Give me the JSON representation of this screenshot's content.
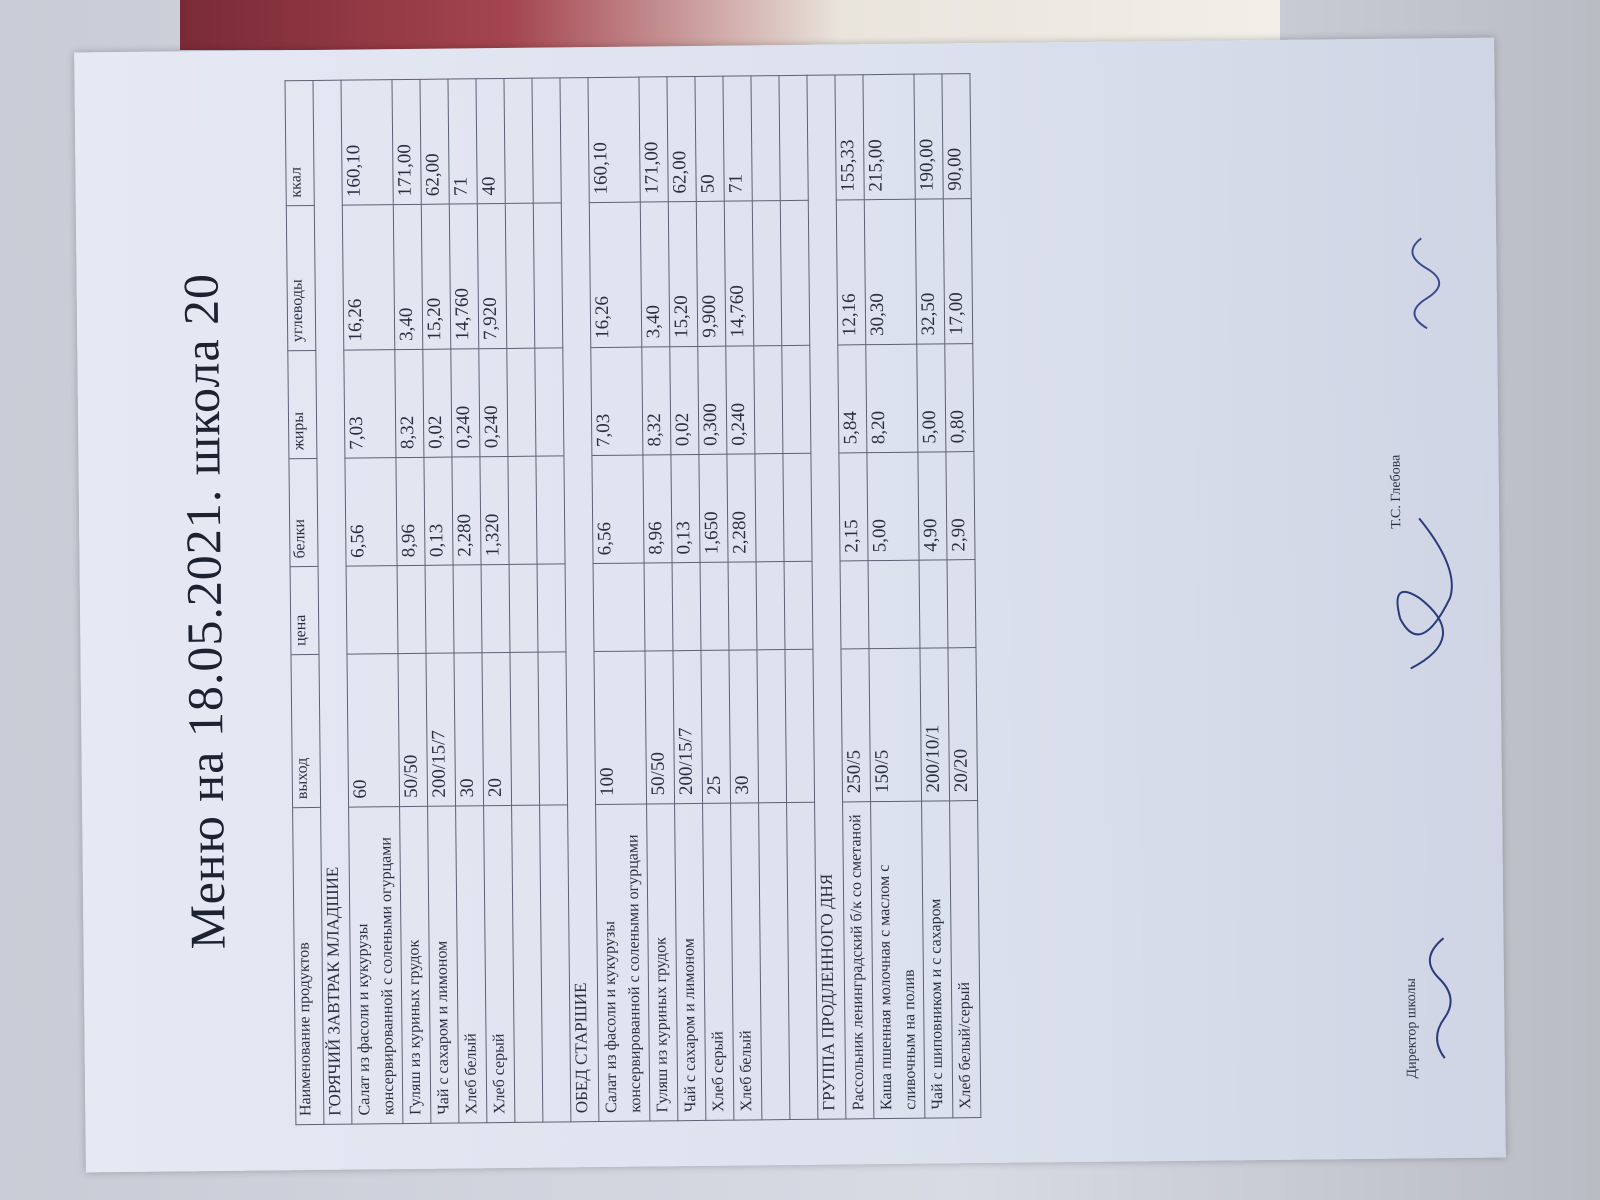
{
  "title": "Меню на 18.05.2021.  школа 20",
  "headers": [
    "Наименование продуктов",
    "выход",
    "цена",
    "белки",
    "жиры",
    "углеводы",
    "ккал"
  ],
  "sections": [
    {
      "title": "ГОРЯЧИЙ ЗАВТРАК МЛАДШИЕ",
      "rows": [
        [
          "Салат из фасоли и кукурузы консервированной с солеными огурцами",
          "60",
          "",
          "6,56",
          "7,03",
          "16,26",
          "160,10"
        ],
        [
          "Гуляш из куриных грудок",
          "50/50",
          "",
          "8,96",
          "8,32",
          "3,40",
          "171,00"
        ],
        [
          "Чай с сахаром и лимоном",
          "200/15/7",
          "",
          "0,13",
          "0,02",
          "15,20",
          "62,00"
        ],
        [
          "Хлеб белый",
          "30",
          "",
          "2,280",
          "0,240",
          "14,760",
          "71"
        ],
        [
          "Хлеб серый",
          "20",
          "",
          "1,320",
          "0,240",
          "7,920",
          "40"
        ],
        [
          "",
          "",
          "",
          "",
          "",
          "",
          ""
        ],
        [
          "",
          "",
          "",
          "",
          "",
          "",
          ""
        ]
      ]
    },
    {
      "title": "ОБЕД СТАРШИЕ",
      "rows": [
        [
          "Салат из фасоли и кукурузы консервированной с солеными огурцами",
          "100",
          "",
          "6,56",
          "7,03",
          "16,26",
          "160,10"
        ],
        [
          "Гуляш из куриных грудок",
          "50/50",
          "",
          "8,96",
          "8,32",
          "3,40",
          "171,00"
        ],
        [
          "Чай с сахаром и лимоном",
          "200/15/7",
          "",
          "0,13",
          "0,02",
          "15,20",
          "62,00"
        ],
        [
          "Хлеб серый",
          "25",
          "",
          "1,650",
          "0,300",
          "9,900",
          "50"
        ],
        [
          "Хлеб белый",
          "30",
          "",
          "2,280",
          "0,240",
          "14,760",
          "71"
        ],
        [
          "",
          "",
          "",
          "",
          "",
          "",
          ""
        ],
        [
          "",
          "",
          "",
          "",
          "",
          "",
          ""
        ]
      ]
    },
    {
      "title": "ГРУППА ПРОДЛЕННОГО ДНЯ",
      "rows": [
        [
          "Рассольник ленинградский б/к со сметаной",
          "250/5",
          "",
          "2,15",
          "5,84",
          "12,16",
          "155,33"
        ],
        [
          "Каша пшенная молочная с маслом с сливочным на полив",
          "150/5",
          "",
          "5,00",
          "8,20",
          "30,30",
          "215,00"
        ],
        [
          "Чай с шиповником и с сахаром",
          "200/10/1",
          "",
          "4,90",
          "5,00",
          "32,50",
          "190,00"
        ],
        [
          "Хлеб белый/серый",
          "20/20",
          "",
          "2,90",
          "0,80",
          "17,00",
          "90,00"
        ]
      ]
    }
  ],
  "footer": {
    "director_label": "Директор школы",
    "director_name": "Т.С. Глебова"
  }
}
